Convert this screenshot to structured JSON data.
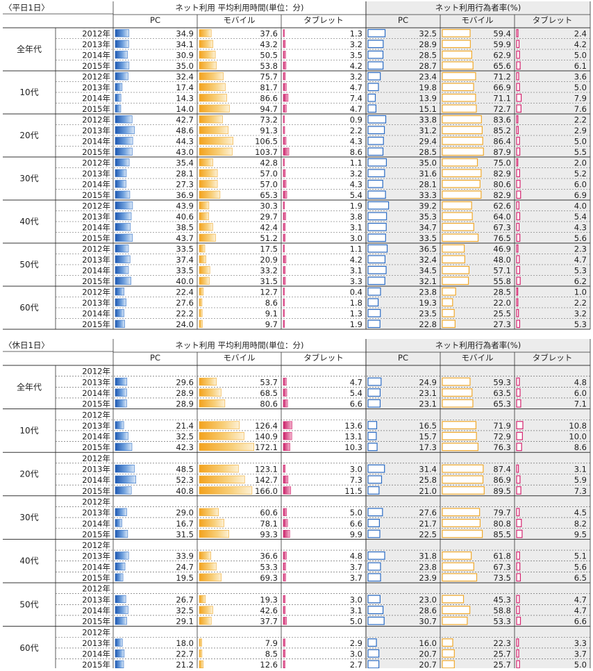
{
  "chart_data": [
    {
      "type": "table",
      "section_label": "〈平日1日〉",
      "group_headers": [
        "ネット利用 平均利用時間(単位：分)",
        "ネット利用行為者率(%)"
      ],
      "columns": [
        "PC",
        "モバイル",
        "タブレット",
        "PC",
        "モバイル",
        "タブレット"
      ],
      "years": [
        "2012年",
        "2013年",
        "2014年",
        "2015年"
      ],
      "groups": [
        {
          "label": "全年代",
          "rows": [
            [
              34.9,
              37.6,
              1.3,
              32.5,
              59.4,
              2.4
            ],
            [
              34.1,
              43.2,
              3.2,
              28.9,
              59.9,
              4.2
            ],
            [
              30.9,
              50.5,
              3.5,
              28.5,
              62.9,
              5.0
            ],
            [
              35.0,
              53.8,
              4.2,
              28.7,
              65.6,
              6.1
            ]
          ]
        },
        {
          "label": "10代",
          "rows": [
            [
              32.4,
              75.7,
              3.2,
              23.4,
              71.2,
              3.6
            ],
            [
              17.4,
              81.7,
              4.7,
              19.8,
              66.9,
              5.0
            ],
            [
              14.3,
              86.6,
              7.4,
              13.9,
              71.1,
              7.9
            ],
            [
              14.0,
              94.7,
              4.7,
              15.1,
              72.7,
              7.6
            ]
          ]
        },
        {
          "label": "20代",
          "rows": [
            [
              42.7,
              73.2,
              0.9,
              33.8,
              83.6,
              2.2
            ],
            [
              48.6,
              91.3,
              2.2,
              31.2,
              85.2,
              2.9
            ],
            [
              44.3,
              106.5,
              4.3,
              29.4,
              86.4,
              5.0
            ],
            [
              43.0,
              103.7,
              8.6,
              28.5,
              87.9,
              5.5
            ]
          ]
        },
        {
          "label": "30代",
          "rows": [
            [
              35.4,
              42.8,
              1.1,
              35.0,
              75.0,
              2.0
            ],
            [
              28.1,
              57.0,
              3.2,
              31.6,
              82.9,
              5.2
            ],
            [
              27.3,
              57.0,
              4.3,
              28.1,
              80.6,
              6.0
            ],
            [
              36.9,
              65.3,
              5.4,
              33.3,
              82.9,
              6.9
            ]
          ]
        },
        {
          "label": "40代",
          "rows": [
            [
              43.9,
              30.3,
              1.9,
              39.2,
              62.6,
              4.0
            ],
            [
              40.6,
              29.7,
              3.8,
              35.3,
              64.0,
              5.4
            ],
            [
              38.5,
              42.4,
              3.1,
              34.7,
              67.3,
              4.3
            ],
            [
              43.7,
              51.2,
              3.0,
              33.5,
              76.5,
              5.6
            ]
          ]
        },
        {
          "label": "50代",
          "rows": [
            [
              33.5,
              17.5,
              1.1,
              36.5,
              46.9,
              2.3
            ],
            [
              37.4,
              20.9,
              4.2,
              32.4,
              48.0,
              4.7
            ],
            [
              33.5,
              33.2,
              3.1,
              34.5,
              57.1,
              5.3
            ],
            [
              40.0,
              31.5,
              3.3,
              32.1,
              55.8,
              6.2
            ]
          ]
        },
        {
          "label": "60代",
          "rows": [
            [
              22.4,
              12.7,
              0.4,
              23.8,
              28.5,
              1.0
            ],
            [
              27.6,
              8.6,
              1.8,
              19.3,
              22.0,
              2.2
            ],
            [
              22.2,
              9.1,
              1.3,
              23.5,
              25.5,
              3.2
            ],
            [
              24.0,
              9.7,
              1.9,
              22.8,
              27.3,
              5.3
            ]
          ]
        }
      ]
    },
    {
      "type": "table",
      "section_label": "〈休日1日〉",
      "group_headers": [
        "ネット利用 平均利用時間(単位：分)",
        "ネット利用行為者率(%)"
      ],
      "columns": [
        "PC",
        "モバイル",
        "タブレット",
        "PC",
        "モバイル",
        "タブレット"
      ],
      "years": [
        "2012年",
        "2013年",
        "2014年",
        "2015年"
      ],
      "groups": [
        {
          "label": "全年代",
          "rows": [
            null,
            [
              29.6,
              53.7,
              4.7,
              24.9,
              59.3,
              4.8
            ],
            [
              28.9,
              68.5,
              5.4,
              23.1,
              63.5,
              6.0
            ],
            [
              28.9,
              80.6,
              6.6,
              23.1,
              65.3,
              7.1
            ]
          ]
        },
        {
          "label": "10代",
          "rows": [
            null,
            [
              21.4,
              126.4,
              13.6,
              16.5,
              71.9,
              10.8
            ],
            [
              32.5,
              140.9,
              13.1,
              15.7,
              72.9,
              10.0
            ],
            [
              42.3,
              172.1,
              10.3,
              17.3,
              76.3,
              8.6
            ]
          ]
        },
        {
          "label": "20代",
          "rows": [
            null,
            [
              48.5,
              123.1,
              3.0,
              31.4,
              87.4,
              3.1
            ],
            [
              52.3,
              142.7,
              7.3,
              25.8,
              86.9,
              5.9
            ],
            [
              40.8,
              166.0,
              11.5,
              21.0,
              89.5,
              7.3
            ]
          ]
        },
        {
          "label": "30代",
          "rows": [
            null,
            [
              29.0,
              60.6,
              5.0,
              27.6,
              79.7,
              4.5
            ],
            [
              16.7,
              78.1,
              6.6,
              21.7,
              80.8,
              8.2
            ],
            [
              31.5,
              93.3,
              9.9,
              22.5,
              85.5,
              9.5
            ]
          ]
        },
        {
          "label": "40代",
          "rows": [
            null,
            [
              33.9,
              36.6,
              4.8,
              31.8,
              61.8,
              5.1
            ],
            [
              24.7,
              53.3,
              3.7,
              23.8,
              67.3,
              5.6
            ],
            [
              19.5,
              69.3,
              3.7,
              23.9,
              73.5,
              6.5
            ]
          ]
        },
        {
          "label": "50代",
          "rows": [
            null,
            [
              26.7,
              19.3,
              3.0,
              23.0,
              45.3,
              4.7
            ],
            [
              32.5,
              42.6,
              3.1,
              28.6,
              58.8,
              4.7
            ],
            [
              29.1,
              37.7,
              5.0,
              30.7,
              53.3,
              6.6
            ]
          ]
        },
        {
          "label": "60代",
          "rows": [
            null,
            [
              18.0,
              7.9,
              2.9,
              16.0,
              22.3,
              3.3
            ],
            [
              22.7,
              8.5,
              3.0,
              20.7,
              25.7,
              3.7
            ],
            [
              21.2,
              12.6,
              2.7,
              20.7,
              25.7,
              5.0
            ]
          ]
        }
      ]
    }
  ],
  "colors": {
    "pc": "#2a6bc4",
    "mobile": "#f0a92c",
    "tablet": "#d4236f",
    "rate_bg": "#ececec",
    "grid": "#333333"
  }
}
